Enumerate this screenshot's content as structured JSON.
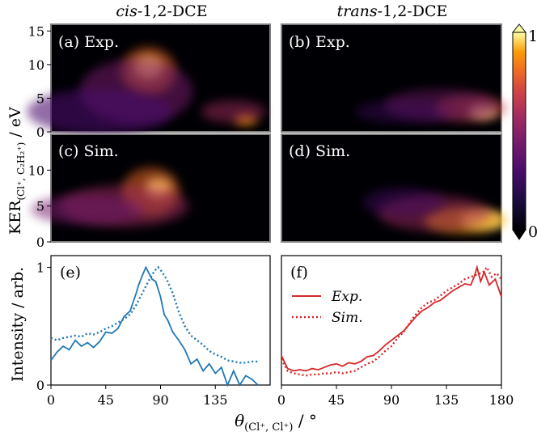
{
  "figure": {
    "col_titles": [
      {
        "italic": "cis",
        "rest": "-1,2-DCE"
      },
      {
        "italic": "trans",
        "rest": "-1,2-DCE"
      }
    ],
    "ylabel_top": {
      "main": "KER",
      "sub": "(Cl⁺, C₂H₂⁺)",
      "unit": " / eV"
    },
    "ylabel_bottom": "Intensity / arb.",
    "xlabel": {
      "main": "θ",
      "sub": "(Cl⁺, Cl⁺)",
      "unit": " / °"
    },
    "colorbar": {
      "max_label": "1",
      "min_label": "0",
      "colormap": "inferno"
    }
  },
  "chart_data": [
    {
      "type": "heatmap",
      "panel": "(a)",
      "label": "Exp.",
      "molecule": "cis-1,2-DCE",
      "ylim": [
        0,
        16
      ],
      "yticks": [
        0,
        5,
        10,
        15
      ],
      "peaks": [
        {
          "theta": 80,
          "ker": 9.5,
          "intensity": 1.0
        },
        {
          "theta": 160,
          "ker": 1.8,
          "intensity": 0.7
        }
      ]
    },
    {
      "type": "heatmap",
      "panel": "(b)",
      "label": "Exp.",
      "molecule": "trans-1,2-DCE",
      "peaks": [
        {
          "theta": 170,
          "ker": 3.0,
          "intensity": 0.85
        }
      ]
    },
    {
      "type": "heatmap",
      "panel": "(c)",
      "label": "Sim.",
      "molecule": "cis-1,2-DCE",
      "ylim": [
        0,
        15
      ],
      "yticks": [
        0,
        5,
        10
      ],
      "peaks": [
        {
          "theta": 85,
          "ker": 7.5,
          "intensity": 1.0
        }
      ]
    },
    {
      "type": "heatmap",
      "panel": "(d)",
      "label": "Sim.",
      "molecule": "trans-1,2-DCE",
      "peaks": [
        {
          "theta": 165,
          "ker": 3.0,
          "intensity": 1.0
        }
      ]
    },
    {
      "type": "line",
      "panel": "(e)",
      "color": "#1f77b4",
      "xlim": [
        0,
        180
      ],
      "ylim": [
        0,
        1.1
      ],
      "xticks": [
        0,
        45,
        90,
        135
      ],
      "yticks": [
        0,
        1
      ],
      "series": [
        {
          "name": "Exp.",
          "style": "solid",
          "x": [
            0,
            5,
            10,
            15,
            20,
            25,
            30,
            35,
            40,
            45,
            50,
            55,
            60,
            65,
            70,
            72,
            75,
            78,
            80,
            83,
            86,
            90,
            93,
            96,
            100,
            105,
            110,
            115,
            120,
            125,
            130,
            135,
            140,
            145,
            150,
            155,
            160,
            165,
            170
          ],
          "y": [
            0.21,
            0.28,
            0.33,
            0.3,
            0.38,
            0.33,
            0.36,
            0.32,
            0.37,
            0.45,
            0.44,
            0.48,
            0.58,
            0.63,
            0.78,
            0.85,
            0.93,
            1.0,
            0.96,
            0.9,
            0.88,
            0.75,
            0.6,
            0.55,
            0.45,
            0.38,
            0.3,
            0.18,
            0.22,
            0.12,
            0.18,
            0.1,
            0.15,
            0.0,
            0.12,
            0.0,
            0.08,
            0.05,
            0.0
          ]
        },
        {
          "name": "Sim.",
          "style": "dotted",
          "x": [
            0,
            5,
            10,
            15,
            20,
            25,
            30,
            35,
            40,
            45,
            50,
            55,
            60,
            65,
            70,
            75,
            80,
            85,
            88,
            90,
            95,
            100,
            105,
            110,
            115,
            120,
            125,
            130,
            135,
            140,
            145,
            150,
            155,
            160,
            165,
            170
          ],
          "y": [
            0.4,
            0.38,
            0.4,
            0.41,
            0.42,
            0.41,
            0.44,
            0.43,
            0.45,
            0.48,
            0.5,
            0.53,
            0.56,
            0.6,
            0.68,
            0.78,
            0.88,
            0.97,
            1.0,
            0.98,
            0.9,
            0.78,
            0.62,
            0.5,
            0.42,
            0.38,
            0.34,
            0.29,
            0.26,
            0.24,
            0.21,
            0.2,
            0.19,
            0.19,
            0.2,
            0.2
          ]
        }
      ]
    },
    {
      "type": "line",
      "panel": "(f)",
      "color": "#d62728",
      "xlim": [
        0,
        180
      ],
      "ylim": [
        0,
        1.1
      ],
      "xticks": [
        0,
        45,
        90,
        135,
        180
      ],
      "legend": [
        "Exp.",
        "Sim."
      ],
      "series": [
        {
          "name": "Exp.",
          "style": "solid",
          "x": [
            0,
            5,
            10,
            15,
            20,
            25,
            30,
            35,
            40,
            45,
            50,
            55,
            60,
            65,
            70,
            75,
            80,
            85,
            90,
            95,
            100,
            105,
            110,
            115,
            120,
            125,
            130,
            135,
            140,
            145,
            150,
            155,
            158,
            160,
            163,
            166,
            170,
            175,
            180
          ],
          "y": [
            0.25,
            0.14,
            0.12,
            0.13,
            0.12,
            0.14,
            0.13,
            0.15,
            0.17,
            0.18,
            0.16,
            0.19,
            0.18,
            0.2,
            0.24,
            0.25,
            0.29,
            0.34,
            0.38,
            0.42,
            0.46,
            0.52,
            0.58,
            0.63,
            0.66,
            0.7,
            0.72,
            0.76,
            0.8,
            0.83,
            0.86,
            0.85,
            0.93,
            1.0,
            0.88,
            0.96,
            0.85,
            0.9,
            0.75
          ]
        },
        {
          "name": "Sim.",
          "style": "dotted",
          "x": [
            0,
            5,
            10,
            15,
            20,
            25,
            30,
            35,
            40,
            45,
            50,
            55,
            60,
            65,
            70,
            75,
            80,
            85,
            90,
            95,
            100,
            105,
            110,
            115,
            120,
            125,
            130,
            135,
            140,
            145,
            150,
            155,
            160,
            165,
            168,
            172,
            176,
            180
          ],
          "y": [
            0.22,
            0.12,
            0.1,
            0.09,
            0.08,
            0.09,
            0.09,
            0.1,
            0.1,
            0.11,
            0.1,
            0.11,
            0.12,
            0.15,
            0.18,
            0.2,
            0.24,
            0.29,
            0.33,
            0.4,
            0.45,
            0.53,
            0.6,
            0.66,
            0.7,
            0.72,
            0.76,
            0.8,
            0.83,
            0.86,
            0.9,
            0.92,
            0.94,
            0.96,
            1.0,
            0.92,
            0.95,
            0.9
          ]
        }
      ]
    }
  ]
}
